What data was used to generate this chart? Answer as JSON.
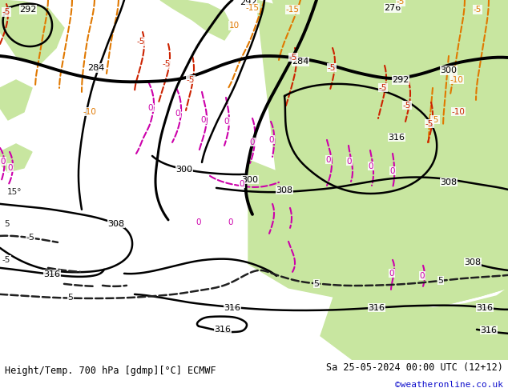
{
  "title_left": "Height/Temp. 700 hPa [gdmp][°C] ECMWF",
  "title_right": "Sa 25-05-2024 00:00 UTC (12+12)",
  "watermark": "©weatheronline.co.uk",
  "bg_color": "#ffffff",
  "map_bg_color": "#d0d0d0",
  "green_color": "#c8e6a0",
  "gray_color": "#b8b8b8",
  "sea_color": "#d8d8d8",
  "bc": "#000000",
  "oc": "#e07800",
  "rc": "#cc2200",
  "mc": "#cc00aa",
  "bd": "#202020",
  "bottom_bg": "#f0f0f0",
  "watermark_color": "#1010cc",
  "figsize": [
    6.34,
    4.9
  ],
  "dpi": 100
}
